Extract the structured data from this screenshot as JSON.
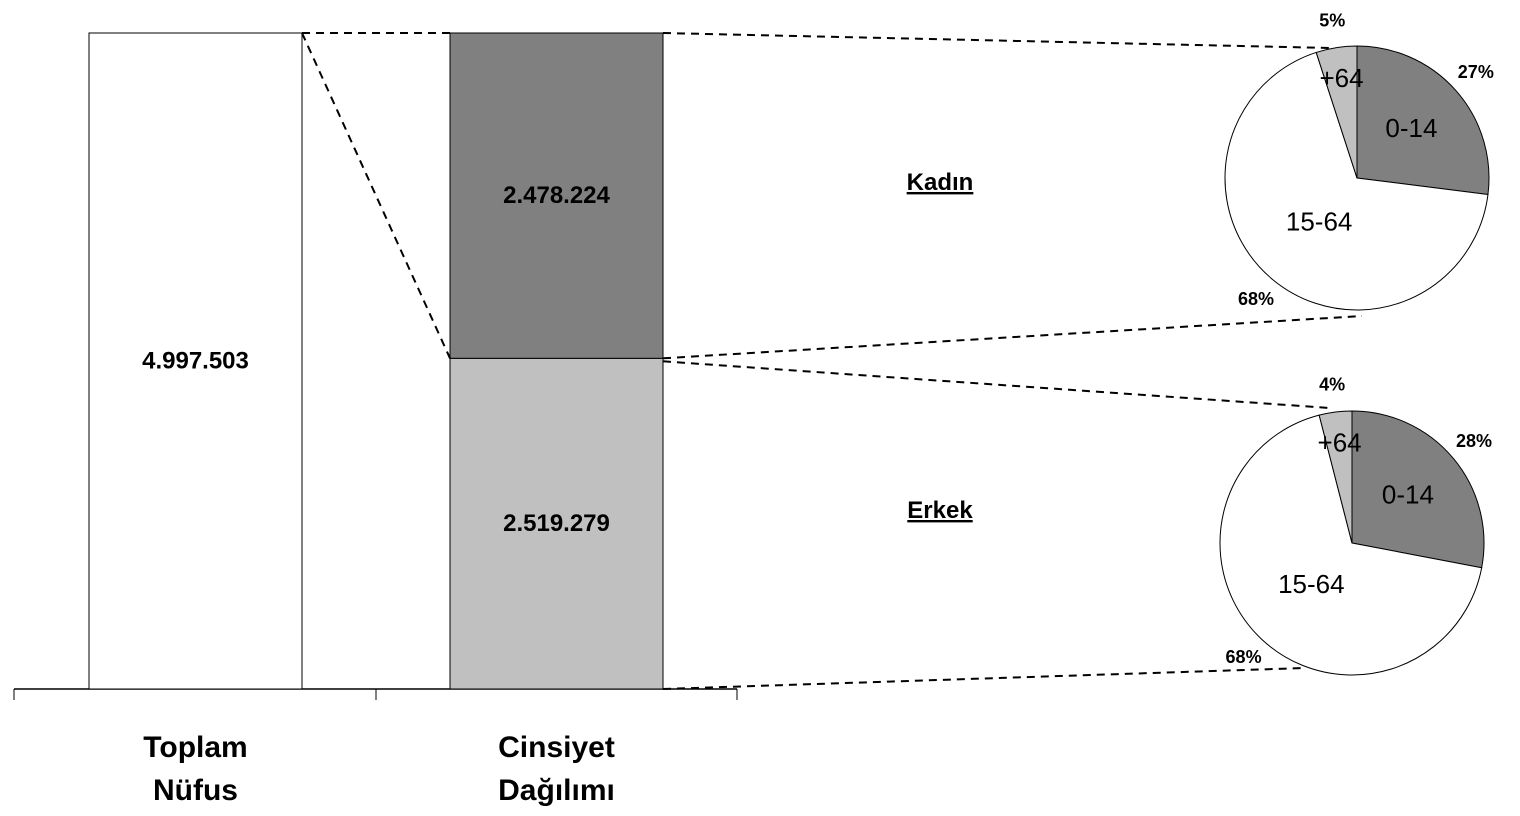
{
  "chart_data": [
    {
      "type": "bar",
      "categories": [
        "Toplam Nüfus",
        "Cinsiyet Dağılımı"
      ],
      "series": [
        {
          "color": "#ffffff",
          "values": [
            4997503,
            null
          ],
          "value_labels": [
            "4.997.503",
            null
          ]
        },
        {
          "name": "Erkek",
          "color": "#c0c0c0",
          "values": [
            null,
            2519279
          ],
          "value_labels": [
            null,
            "2.519.279"
          ]
        },
        {
          "name": "Kadın",
          "color": "#808080",
          "values": [
            null,
            2478224
          ],
          "value_labels": [
            null,
            "2.478.224"
          ]
        }
      ],
      "stacked": true
    },
    {
      "type": "pie",
      "categories": [
        "0-14",
        "15-64",
        "+64"
      ],
      "values": [
        27,
        68,
        5
      ],
      "value_labels": [
        "27%",
        "68%",
        "5%"
      ],
      "colors": [
        "#808080",
        "#ffffff",
        "#c0c0c0"
      ]
    },
    {
      "type": "pie",
      "categories": [
        "0-14",
        "15-64",
        "+64"
      ],
      "values": [
        28,
        68,
        4
      ],
      "value_labels": [
        "28%",
        "68%",
        "4%"
      ],
      "colors": [
        "#808080",
        "#ffffff",
        "#c0c0c0"
      ]
    }
  ]
}
